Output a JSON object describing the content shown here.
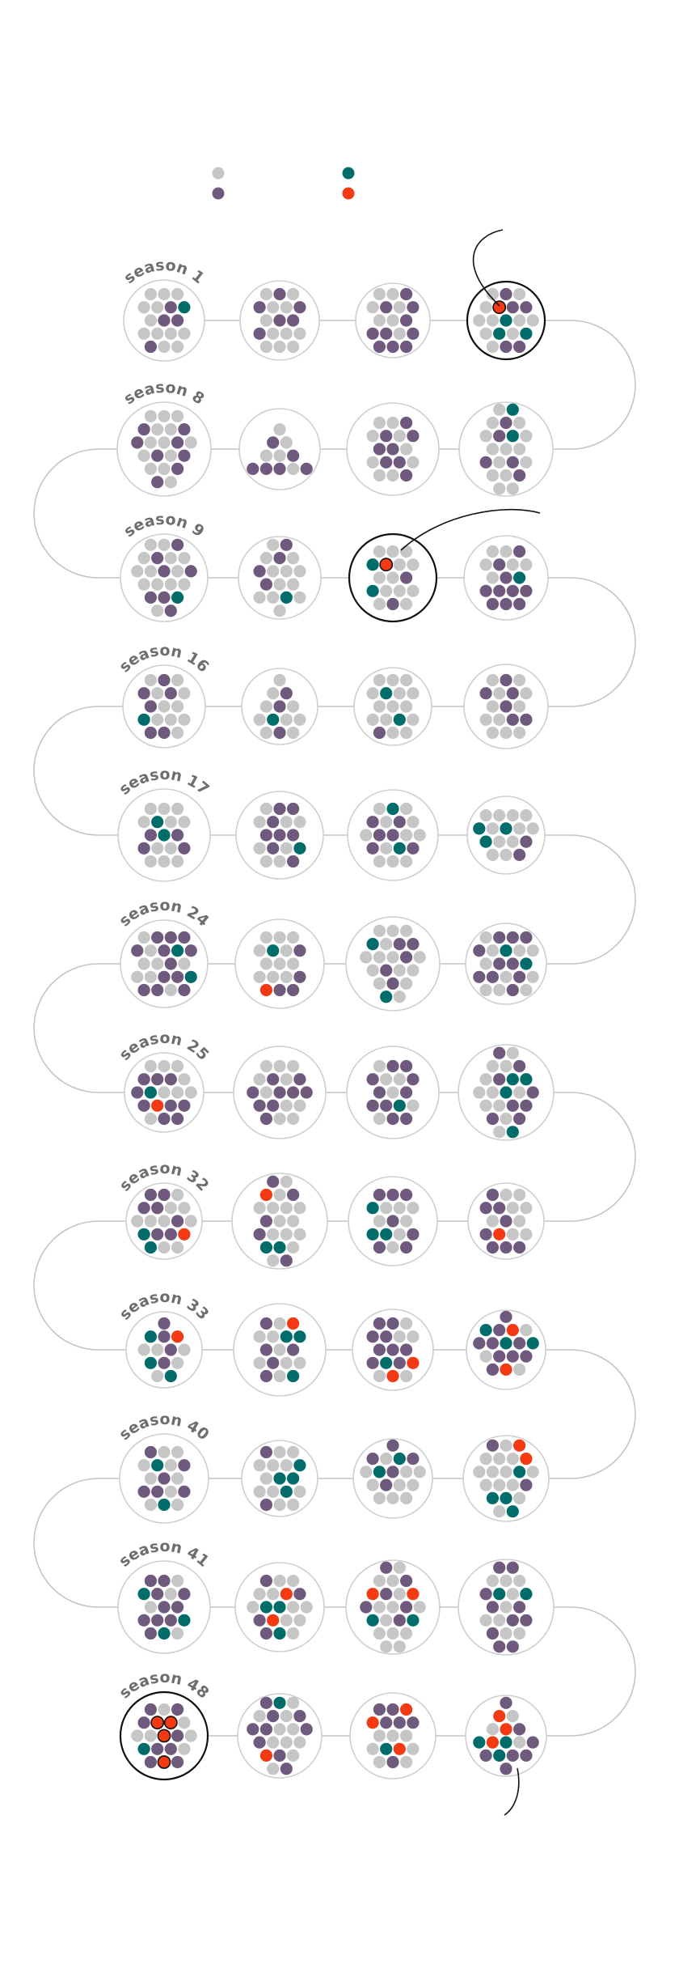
{
  "colors": {
    "gray": "#c6c6c6",
    "purple": "#6f5a7e",
    "teal": "#006d6a",
    "red": "#f33a12",
    "ring": "#cfcfcf",
    "connector": "#c4c4c4",
    "highlight": "#111111",
    "label": "#6e6e6e"
  },
  "legend": [
    {
      "color": "gray"
    },
    {
      "color": "teal"
    },
    {
      "color": "purple"
    },
    {
      "color": "red"
    }
  ],
  "season_labels": [
    {
      "row": 0,
      "text": "season 1"
    },
    {
      "row": 1,
      "text": "season 8"
    },
    {
      "row": 2,
      "text": "season 9"
    },
    {
      "row": 3,
      "text": "season 16"
    },
    {
      "row": 4,
      "text": "season 17"
    },
    {
      "row": 5,
      "text": "season 24"
    },
    {
      "row": 6,
      "text": "season 25"
    },
    {
      "row": 7,
      "text": "season 32"
    },
    {
      "row": 8,
      "text": "season 33"
    },
    {
      "row": 9,
      "text": "season 40"
    },
    {
      "row": 10,
      "text": "season 41"
    },
    {
      "row": 11,
      "text": "season 48"
    }
  ],
  "highlighted_seasons": [
    4,
    11,
    48
  ]
}
